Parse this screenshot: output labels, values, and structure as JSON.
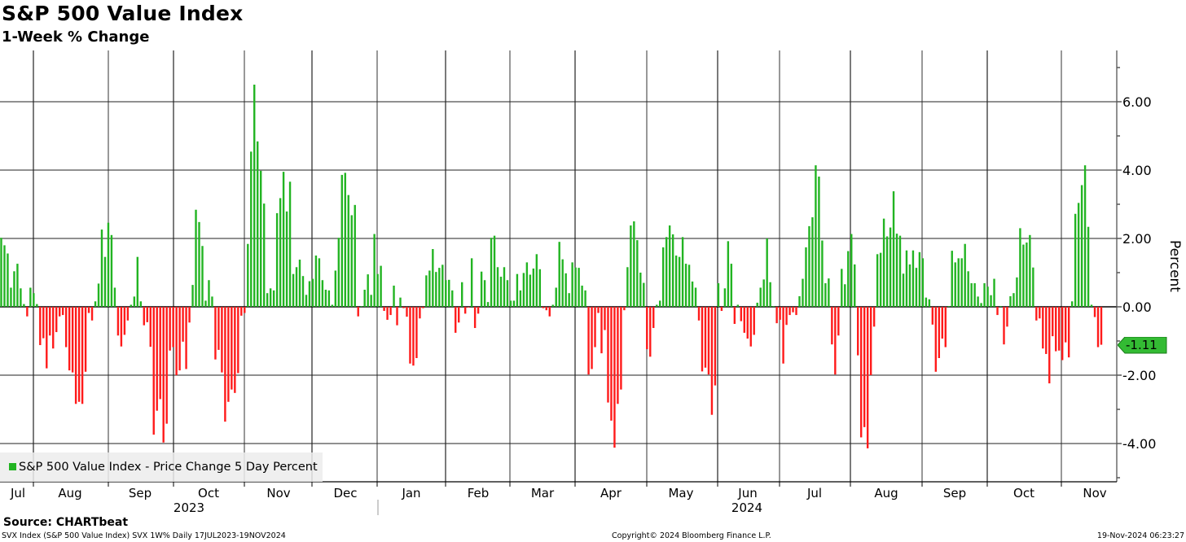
{
  "title": "S&P 500 Value Index",
  "subtitle": "1-Week % Change",
  "source": "Source: CHARTbeat",
  "footer": {
    "left": "SVX Index (S&P 500 Value Index) SVX 1W%  Daily 17JUL2023-19NOV2024",
    "copyright": "Copyright© 2024 Bloomberg Finance L.P.",
    "timestamp": "19-Nov-2024 06:23:27"
  },
  "colors": {
    "positive": "#22b422",
    "negative": "#ff1a1a",
    "badge": "#33bb33"
  },
  "chart_data": {
    "type": "bar",
    "title": "S&P 500 Value Index",
    "subtitle": "1-Week % Change",
    "ylabel": "Percent",
    "ylim": [
      -5.1,
      7.5
    ],
    "yticks": [
      "6.00",
      "4.00",
      "2.00",
      "0.00",
      "-2.00",
      "-4.00"
    ],
    "ytick_values": [
      6,
      4,
      2,
      0,
      -2,
      -4
    ],
    "grid": true,
    "legend_position": "bottom-left",
    "legend": "S&P 500 Value Index - Price Change 5 Day Percent",
    "x_range": [
      "17JUL2023",
      "19NOV2024"
    ],
    "month_labels": [
      "Jul",
      "Aug",
      "Sep",
      "Oct",
      "Nov",
      "Dec",
      "Jan",
      "Feb",
      "Mar",
      "Apr",
      "May",
      "Jun",
      "Jul",
      "Aug",
      "Sep",
      "Oct",
      "Nov"
    ],
    "year_labels": [
      "2023",
      "2024"
    ],
    "last_value": "-1.11",
    "values": [
      2.02,
      1.8,
      1.56,
      0.56,
      1.04,
      1.26,
      0.54,
      0.08,
      -0.28,
      0.56,
      0.4,
      0.08,
      -1.12,
      -0.92,
      -1.8,
      -0.84,
      -1.22,
      -0.74,
      -0.28,
      -0.24,
      -1.18,
      -1.86,
      -1.92,
      -2.84,
      -2.78,
      -2.84,
      -1.9,
      -0.18,
      -0.4,
      0.16,
      0.68,
      2.26,
      1.46,
      2.46,
      2.1,
      0.56,
      -0.84,
      -1.16,
      -0.82,
      -0.4,
      0.06,
      0.3,
      1.46,
      0.16,
      -0.54,
      -0.45,
      -1.17,
      -3.74,
      -3.04,
      -2.7,
      -3.97,
      -3.42,
      -1.28,
      -1.18,
      -2.0,
      -1.86,
      -1.02,
      -1.82,
      -0.46,
      0.64,
      2.84,
      2.48,
      1.78,
      0.18,
      0.78,
      0.3,
      -1.54,
      -1.26,
      -1.92,
      -3.36,
      -2.78,
      -2.42,
      -2.52,
      -1.94,
      -0.26,
      -0.18,
      1.84,
      4.54,
      6.5,
      4.84,
      3.98,
      3.02,
      0.4,
      0.54,
      0.48,
      2.74,
      3.18,
      3.95,
      2.79,
      3.66,
      0.96,
      1.16,
      1.38,
      0.9,
      0.35,
      0.75,
      0.82,
      1.5,
      1.42,
      0.78,
      0.5,
      0.48,
      0.06,
      1.06,
      2.02,
      3.86,
      3.92,
      3.27,
      2.68,
      2.98,
      -0.28,
      0.02,
      0.5,
      0.95,
      0.35,
      2.13,
      0.96,
      1.2,
      -0.12,
      -0.38,
      -0.24,
      0.62,
      -0.54,
      0.27,
      -0.04,
      -0.29,
      -1.66,
      -1.72,
      -1.5,
      -0.34,
      -0.04,
      0.92,
      1.06,
      1.69,
      1.02,
      1.14,
      1.23,
      0.78,
      0.79,
      0.48,
      -0.76,
      -0.46,
      0.72,
      -0.2,
      -0.02,
      1.42,
      -0.62,
      -0.2,
      1.03,
      0.78,
      0.14,
      2.02,
      2.08,
      1.16,
      0.88,
      1.16,
      0.78,
      0.18,
      0.18,
      0.96,
      0.48,
      0.99,
      1.3,
      0.94,
      1.12,
      1.54,
      1.1,
      -0.04,
      -0.1,
      -0.28,
      0.06,
      0.56,
      1.9,
      1.39,
      0.98,
      0.4,
      1.3,
      1.15,
      1.14,
      0.62,
      0.48,
      -1.98,
      -1.82,
      -1.18,
      -0.18,
      -1.36,
      -0.68,
      -2.8,
      -3.33,
      -4.12,
      -2.84,
      -2.42,
      -0.1,
      1.16,
      2.38,
      2.5,
      1.95,
      1.0,
      0.7,
      -1.24,
      -1.46,
      -0.62,
      0.06,
      0.18,
      1.74,
      2.04,
      2.38,
      2.12,
      1.5,
      1.46,
      2.04,
      1.26,
      1.23,
      0.74,
      0.56,
      -0.4,
      -1.89,
      -1.78,
      -1.98,
      -3.16,
      -2.3,
      0.69,
      -0.12,
      0.54,
      1.92,
      1.26,
      -0.5,
      0.06,
      -0.42,
      -0.76,
      -0.93,
      -1.16,
      -0.82,
      0.12,
      0.56,
      0.8,
      2.0,
      0.72,
      0.02,
      -0.48,
      -0.38,
      -1.66,
      -0.53,
      -0.24,
      -0.16,
      -0.24,
      0.31,
      0.82,
      1.74,
      2.36,
      2.62,
      4.14,
      3.81,
      1.94,
      0.69,
      0.83,
      -1.1,
      -1.98,
      -0.84,
      1.11,
      0.66,
      1.63,
      2.13,
      1.24,
      -1.42,
      -3.82,
      -3.52,
      -4.14,
      -2.0,
      -0.58,
      1.54,
      1.58,
      2.58,
      2.06,
      2.32,
      3.38,
      2.14,
      2.08,
      0.97,
      1.65,
      1.24,
      1.65,
      1.14,
      1.6,
      1.42,
      0.27,
      0.22,
      -0.52,
      -1.9,
      -1.5,
      -0.93,
      -1.18,
      0.02,
      1.64,
      1.3,
      1.42,
      1.42,
      1.84,
      1.04,
      0.69,
      0.69,
      0.3,
      0.11,
      0.69,
      0.59,
      0.34,
      0.82,
      -0.24,
      0.02,
      -1.1,
      -0.58,
      0.31,
      0.4,
      0.86,
      2.3,
      1.82,
      1.88,
      2.1,
      1.15,
      -0.4,
      -0.34,
      -1.22,
      -1.38,
      -2.24,
      -0.86,
      -1.3,
      -1.28,
      -1.56,
      -1.04,
      -1.48,
      0.16,
      2.72,
      3.04,
      3.56,
      4.14,
      2.34,
      0.06,
      -0.3,
      -1.18,
      -1.11
    ]
  }
}
